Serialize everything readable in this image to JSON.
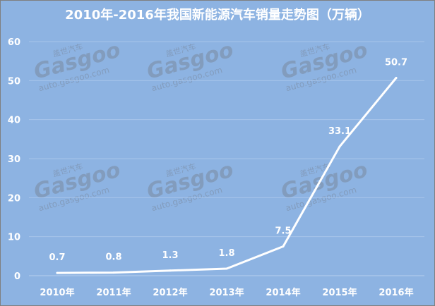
{
  "chart_data": {
    "type": "line",
    "title": "2010年-2016年我国新能源汽车销量走势图（万辆）",
    "categories": [
      "2010年",
      "2011年",
      "2012年",
      "2013年",
      "2014年",
      "2015年",
      "2016年"
    ],
    "series": [
      {
        "values": [
          0.7,
          0.8,
          1.3,
          1.8,
          7.5,
          33.1,
          50.7
        ]
      }
    ],
    "data_labels": [
      "0.7",
      "0.8",
      "1.3",
      "1.8",
      "7.5",
      "33.1",
      "50.7"
    ],
    "yticks": [
      "0",
      "10",
      "20",
      "30",
      "40",
      "50",
      "60"
    ],
    "ylim": [
      0,
      60
    ],
    "grid": true,
    "line_color": "#ffffff",
    "background_color": "#8db3e2"
  },
  "watermark": {
    "brand": "Gasgoo",
    "cn": "盖世汽车",
    "url": "auto.gasgoo.com"
  }
}
